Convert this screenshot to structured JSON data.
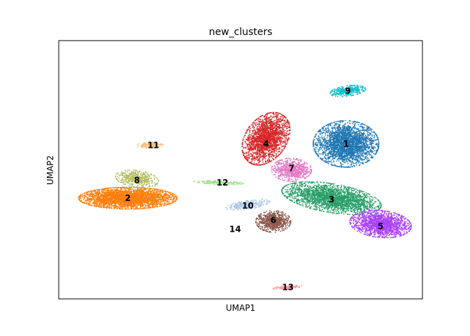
{
  "chart_data": {
    "type": "scatter",
    "title": "new_clusters",
    "xlabel": "UMAP1",
    "ylabel": "UMAP2",
    "xlim": [
      0,
      10
    ],
    "ylim": [
      0,
      10
    ],
    "grid": false,
    "legend": "on data",
    "clusters": [
      {
        "label": "1",
        "color": "#1f77b4",
        "cx": 7.9,
        "cy": 6.0,
        "rx": 0.9,
        "ry": 0.9,
        "n": 2600,
        "angle": 0
      },
      {
        "label": "2",
        "color": "#ff7f0e",
        "cx": 1.9,
        "cy": 3.9,
        "rx": 1.35,
        "ry": 0.42,
        "n": 3200,
        "angle": 0
      },
      {
        "label": "3",
        "color": "#279e68",
        "cx": 7.5,
        "cy": 3.9,
        "rx": 1.4,
        "ry": 0.55,
        "n": 2400,
        "angle": -14
      },
      {
        "label": "4",
        "color": "#d62728",
        "cx": 5.7,
        "cy": 6.2,
        "rx": 0.6,
        "ry": 1.05,
        "n": 2000,
        "angle": -18
      },
      {
        "label": "5",
        "color": "#aa40fc",
        "cx": 8.85,
        "cy": 2.9,
        "rx": 0.85,
        "ry": 0.52,
        "n": 1600,
        "angle": -10
      },
      {
        "label": "6",
        "color": "#8c564b",
        "cx": 5.9,
        "cy": 3.0,
        "rx": 0.48,
        "ry": 0.42,
        "n": 700,
        "angle": 0
      },
      {
        "label": "7",
        "color": "#e377c2",
        "cx": 6.4,
        "cy": 5.0,
        "rx": 0.55,
        "ry": 0.45,
        "n": 700,
        "angle": 0
      },
      {
        "label": "8",
        "color": "#b5bd61",
        "cx": 2.15,
        "cy": 4.65,
        "rx": 0.6,
        "ry": 0.32,
        "n": 500,
        "angle": -12
      },
      {
        "label": "9",
        "color": "#17becf",
        "cx": 7.95,
        "cy": 8.05,
        "rx": 0.5,
        "ry": 0.2,
        "n": 400,
        "angle": 12
      },
      {
        "label": "10",
        "color": "#aec7e8",
        "cx": 5.2,
        "cy": 3.65,
        "rx": 0.62,
        "ry": 0.17,
        "n": 320,
        "angle": 12
      },
      {
        "label": "11",
        "color": "#ffbb78",
        "cx": 2.5,
        "cy": 5.95,
        "rx": 0.38,
        "ry": 0.12,
        "n": 160,
        "angle": 0
      },
      {
        "label": "12",
        "color": "#98df8a",
        "cx": 4.4,
        "cy": 4.5,
        "rx": 0.7,
        "ry": 0.07,
        "n": 180,
        "angle": -3
      },
      {
        "label": "13",
        "color": "#ff9896",
        "cx": 6.3,
        "cy": 0.45,
        "rx": 0.42,
        "ry": 0.07,
        "n": 130,
        "angle": 6
      },
      {
        "label": "14",
        "color": "#c5b0d5",
        "cx": 5.0,
        "cy": 2.7,
        "rx": 0.0,
        "ry": 0.0,
        "n": 0,
        "angle": 0
      }
    ],
    "label_positions": [
      {
        "label": "1",
        "x": 7.9,
        "y": 6.0
      },
      {
        "label": "2",
        "x": 1.9,
        "y": 3.9
      },
      {
        "label": "3",
        "x": 7.5,
        "y": 3.85
      },
      {
        "label": "4",
        "x": 5.7,
        "y": 6.0
      },
      {
        "label": "5",
        "x": 8.85,
        "y": 2.8
      },
      {
        "label": "6",
        "x": 5.9,
        "y": 3.05
      },
      {
        "label": "7",
        "x": 6.4,
        "y": 5.05
      },
      {
        "label": "8",
        "x": 2.15,
        "y": 4.6
      },
      {
        "label": "9",
        "x": 7.95,
        "y": 8.05
      },
      {
        "label": "10",
        "x": 5.2,
        "y": 3.6
      },
      {
        "label": "11",
        "x": 2.6,
        "y": 5.95
      },
      {
        "label": "12",
        "x": 4.5,
        "y": 4.5
      },
      {
        "label": "13",
        "x": 6.3,
        "y": 0.45
      },
      {
        "label": "14",
        "x": 4.85,
        "y": 2.7
      }
    ]
  }
}
